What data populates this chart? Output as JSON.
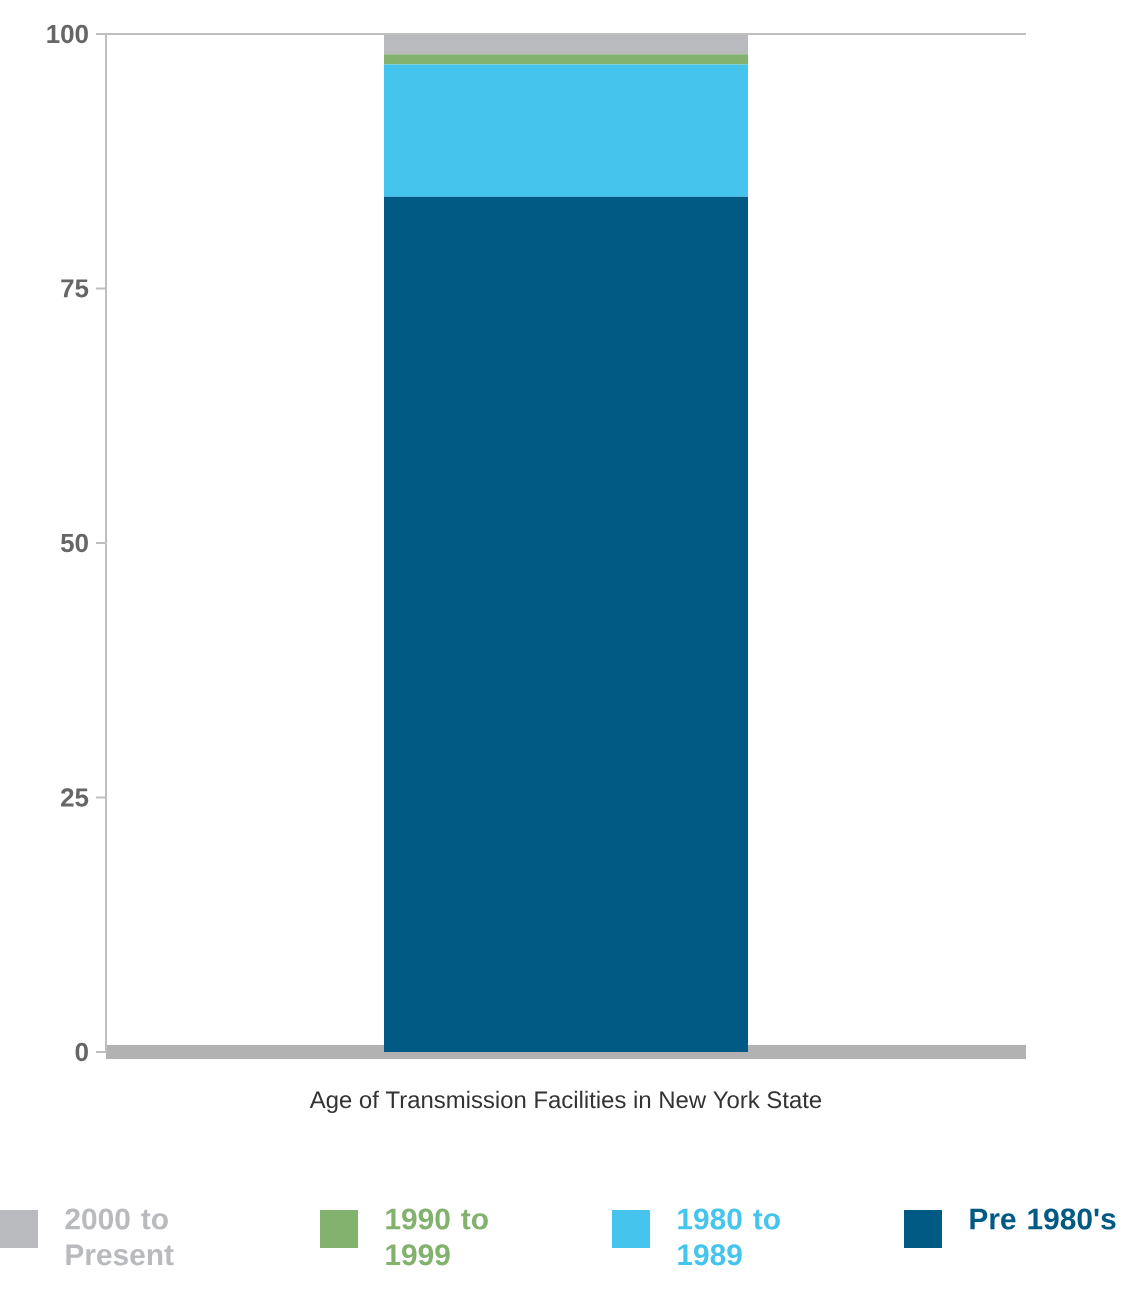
{
  "chart_data": {
    "type": "bar",
    "stacked": true,
    "xlabel": "Age of Transmission Facilities in New York State",
    "categories": [
      null
    ],
    "series": [
      {
        "name": "Pre 1980's",
        "color": "#005a84",
        "values": [
          84
        ]
      },
      {
        "name": "1980 to 1989",
        "color": "#45c5ee",
        "values": [
          13
        ]
      },
      {
        "name": "1990 to 1999",
        "color": "#82b26d",
        "values": [
          1
        ]
      },
      {
        "name": "2000 to Present",
        "color": "#b9babe",
        "values": [
          2
        ]
      }
    ],
    "ylim": [
      0,
      100
    ],
    "yticks": [
      0,
      25,
      50,
      75,
      100
    ],
    "legend": "bottom"
  }
}
